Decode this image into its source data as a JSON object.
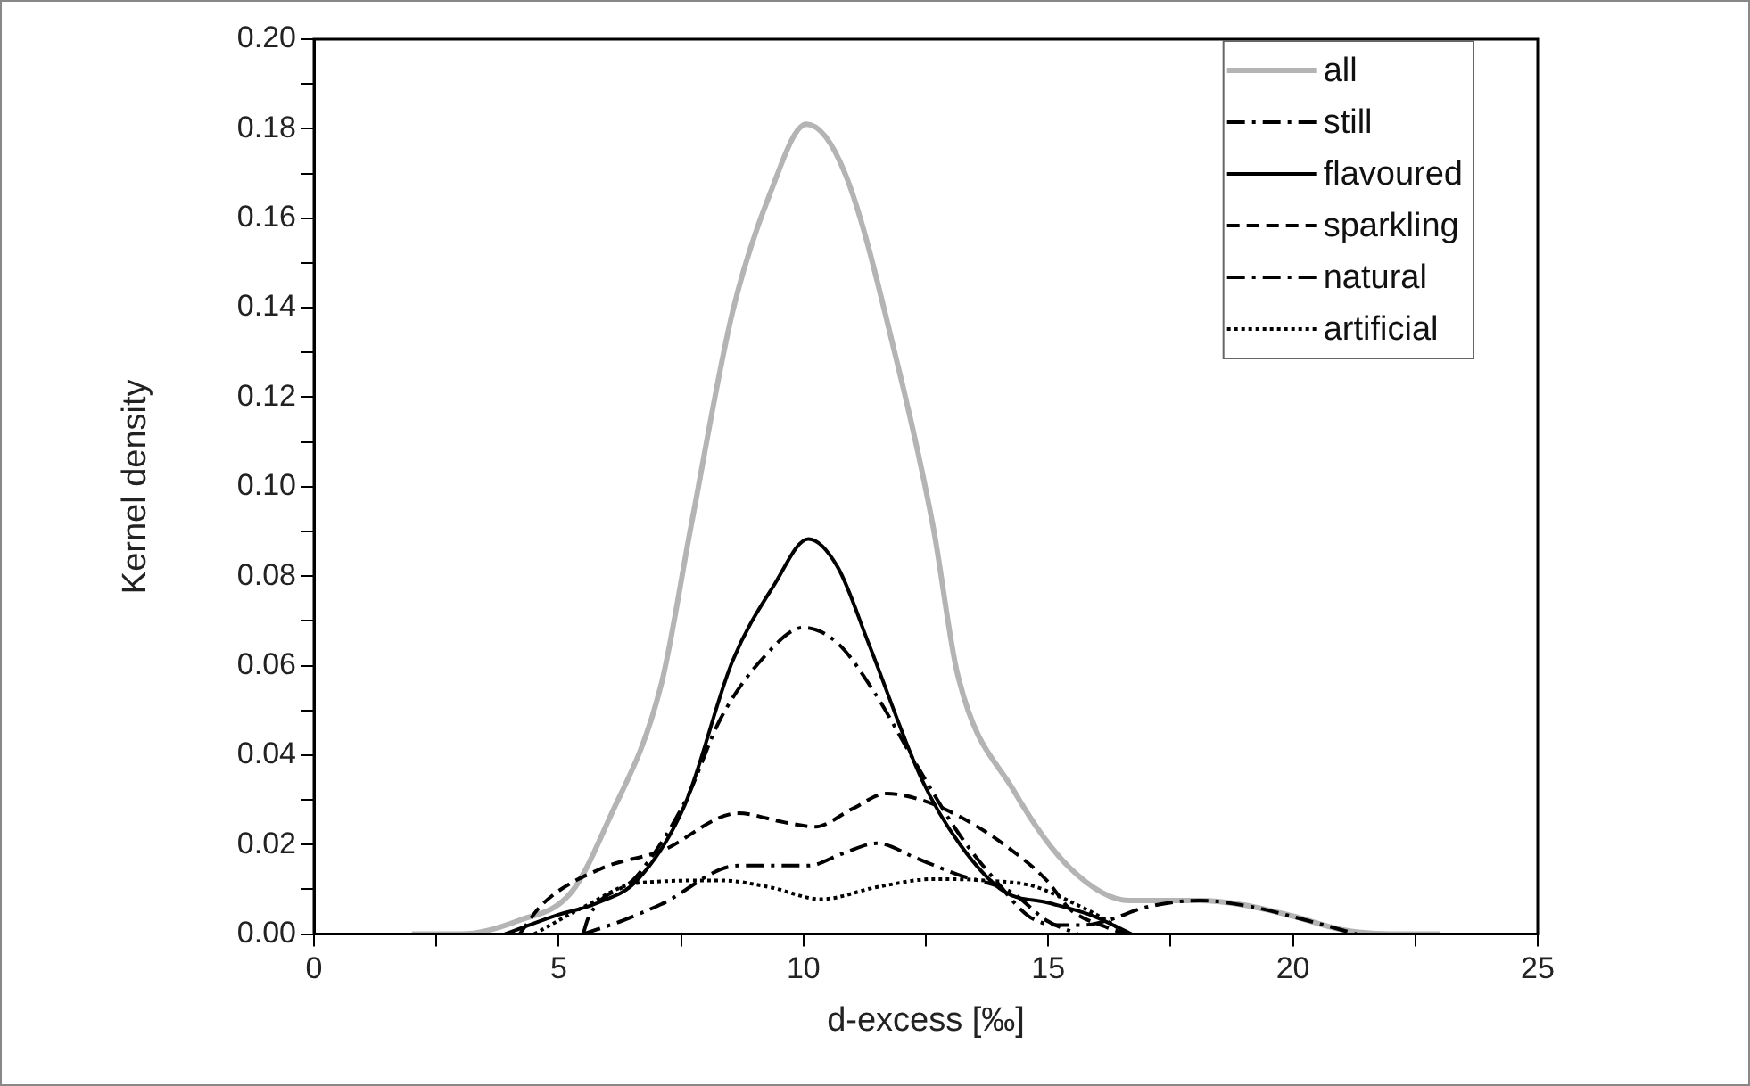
{
  "chart_data": {
    "type": "line",
    "xlabel": "d-excess [‰]",
    "ylabel": "Kernel density",
    "xlim": [
      0,
      25
    ],
    "ylim": [
      0,
      0.2
    ],
    "xticks": [
      0,
      {
        "value": 2.5,
        "label": null
      },
      5,
      {
        "value": 7.5,
        "label": null
      },
      10,
      {
        "value": 12.5,
        "label": null
      },
      15,
      {
        "value": 17.5,
        "label": null
      },
      20,
      {
        "value": 22.5,
        "label": null
      },
      25
    ],
    "yticks": [
      {
        "value": 0,
        "label": "0.00"
      },
      {
        "value": 0.01,
        "label": null
      },
      {
        "value": 0.02,
        "label": "0.02"
      },
      {
        "value": 0.03,
        "label": null
      },
      {
        "value": 0.04,
        "label": "0.04"
      },
      {
        "value": 0.05,
        "label": null
      },
      {
        "value": 0.06,
        "label": "0.06"
      },
      {
        "value": 0.07,
        "label": null
      },
      {
        "value": 0.08,
        "label": "0.08"
      },
      {
        "value": 0.09,
        "label": null
      },
      {
        "value": 0.1,
        "label": "0.10"
      },
      {
        "value": 0.11,
        "label": null
      },
      {
        "value": 0.12,
        "label": "0.12"
      },
      {
        "value": 0.13,
        "label": null
      },
      {
        "value": 0.14,
        "label": "0.14"
      },
      {
        "value": 0.15,
        "label": null
      },
      {
        "value": 0.16,
        "label": "0.16"
      },
      {
        "value": 0.17,
        "label": null
      },
      {
        "value": 0.18,
        "label": "0.18"
      },
      {
        "value": 0.19,
        "label": null
      },
      {
        "value": 0.2,
        "label": "0.20"
      }
    ],
    "grid": false,
    "legend": "top right",
    "marker": "none",
    "series": [
      {
        "name": "all",
        "color": "#b4b4b4",
        "line_style": "solid",
        "x": [
          2,
          3,
          4.18,
          5.27,
          6,
          7.09,
          7.7,
          8.55,
          9.3,
          10.06,
          10.85,
          11.93,
          12.65,
          13.15,
          14.3,
          15.45,
          16.66,
          17.5,
          18.1,
          19,
          20,
          21,
          22,
          23
        ],
        "values": [
          0,
          0,
          0.003,
          0.0095,
          0.025,
          0.0556,
          0.091,
          0.139,
          0.165,
          0.181,
          0.17,
          0.127,
          0.091,
          0.058,
          0.032,
          0.0147,
          0.0075,
          0.0075,
          0.0075,
          0.0065,
          0.004,
          0.001,
          0,
          0
        ]
      },
      {
        "name": "still",
        "color": "#000000",
        "line_style": "dashdot",
        "x": [
          5.5,
          5.6,
          6.6,
          7.6,
          8.3,
          9.2,
          10,
          10.7,
          11.45,
          12.3,
          13.2,
          14.0,
          14.6,
          15.2,
          15.7,
          16.2,
          17,
          18.1,
          19.2,
          20.3,
          21.3
        ],
        "values": [
          0,
          0.0035,
          0.013,
          0.03,
          0.048,
          0.062,
          0.0685,
          0.065,
          0.054,
          0.038,
          0.022,
          0.011,
          0.004,
          0.002,
          0.002,
          0.003,
          0.006,
          0.0075,
          0.006,
          0.003,
          0
        ]
      },
      {
        "name": "flavoured",
        "color": "#000000",
        "line_style": "solid",
        "x": [
          3.9,
          4.9,
          5.8,
          6.6,
          7.58,
          8.55,
          9.4,
          10.1,
          10.7,
          11.33,
          12.42,
          13.2,
          14.1,
          15,
          15.93,
          16.7
        ],
        "values": [
          0,
          0.004,
          0.007,
          0.012,
          0.029,
          0.061,
          0.078,
          0.0883,
          0.082,
          0.065,
          0.0345,
          0.02,
          0.0095,
          0.007,
          0.004,
          0
        ]
      },
      {
        "name": "sparkling",
        "color": "#000000",
        "line_style": "dashed",
        "x": [
          4.2,
          4.67,
          5.88,
          7.1,
          8.67,
          9.6,
          10.24,
          11,
          11.7,
          12.4,
          13.15,
          14.1,
          14.97,
          15.45,
          16.2,
          16.6
        ],
        "values": [
          0,
          0.0067,
          0.0147,
          0.0186,
          0.027,
          0.025,
          0.024,
          0.028,
          0.0314,
          0.03,
          0.0265,
          0.02,
          0.012,
          0.0055,
          0.0015,
          0
        ]
      },
      {
        "name": "natural",
        "color": "#000000",
        "line_style": "dashdot",
        "x": [
          5.5,
          6.3,
          7.1,
          8.67,
          10.1,
          10.8,
          11.5,
          12.3,
          13.15,
          14.24,
          14.97,
          15.6
        ],
        "values": [
          0,
          0.003,
          0.0067,
          0.0153,
          0.0153,
          0.018,
          0.0203,
          0.017,
          0.0133,
          0.0094,
          0.003,
          0
        ]
      },
      {
        "name": "artificial",
        "color": "#000000",
        "line_style": "dotted",
        "x": [
          4.5,
          5.5,
          6.6,
          8.3,
          9.3,
          10.36,
          11.5,
          12.67,
          13.7,
          14.7,
          15.5,
          16.2,
          16.6
        ],
        "values": [
          0,
          0.006,
          0.0114,
          0.012,
          0.0105,
          0.0078,
          0.0105,
          0.0123,
          0.012,
          0.0107,
          0.007,
          0.003,
          0
        ]
      }
    ]
  }
}
